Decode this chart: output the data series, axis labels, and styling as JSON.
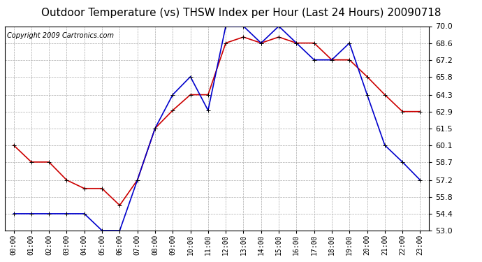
{
  "title": "Outdoor Temperature (vs) THSW Index per Hour (Last 24 Hours) 20090718",
  "copyright": "Copyright 2009 Cartronics.com",
  "hours": [
    "00:00",
    "01:00",
    "02:00",
    "03:00",
    "04:00",
    "05:00",
    "06:00",
    "07:00",
    "08:00",
    "09:00",
    "10:00",
    "11:00",
    "12:00",
    "13:00",
    "14:00",
    "15:00",
    "16:00",
    "17:00",
    "18:00",
    "19:00",
    "20:00",
    "21:00",
    "22:00",
    "23:00"
  ],
  "outdoor_temp": [
    60.1,
    58.7,
    58.7,
    57.2,
    56.5,
    56.5,
    55.1,
    57.2,
    61.5,
    63.0,
    64.3,
    64.3,
    68.6,
    69.1,
    68.6,
    69.1,
    68.6,
    68.6,
    67.2,
    67.2,
    65.8,
    64.3,
    62.9,
    62.9
  ],
  "thsw_index": [
    54.4,
    54.4,
    54.4,
    54.4,
    54.4,
    53.0,
    53.0,
    57.2,
    61.5,
    64.3,
    65.8,
    63.0,
    70.0,
    70.0,
    68.6,
    70.0,
    68.6,
    67.2,
    67.2,
    68.6,
    64.3,
    60.1,
    58.7,
    57.2
  ],
  "temp_color": "#cc0000",
  "thsw_color": "#0000cc",
  "bg_color": "#ffffff",
  "plot_bg_color": "#ffffff",
  "grid_color": "#aaaaaa",
  "ylim": [
    53.0,
    70.0
  ],
  "yticks": [
    53.0,
    54.4,
    55.8,
    57.2,
    58.7,
    60.1,
    61.5,
    62.9,
    64.3,
    65.8,
    67.2,
    68.6,
    70.0
  ],
  "title_fontsize": 11,
  "copyright_fontsize": 7,
  "marker": "+",
  "marker_size": 5,
  "linewidth": 1.2
}
